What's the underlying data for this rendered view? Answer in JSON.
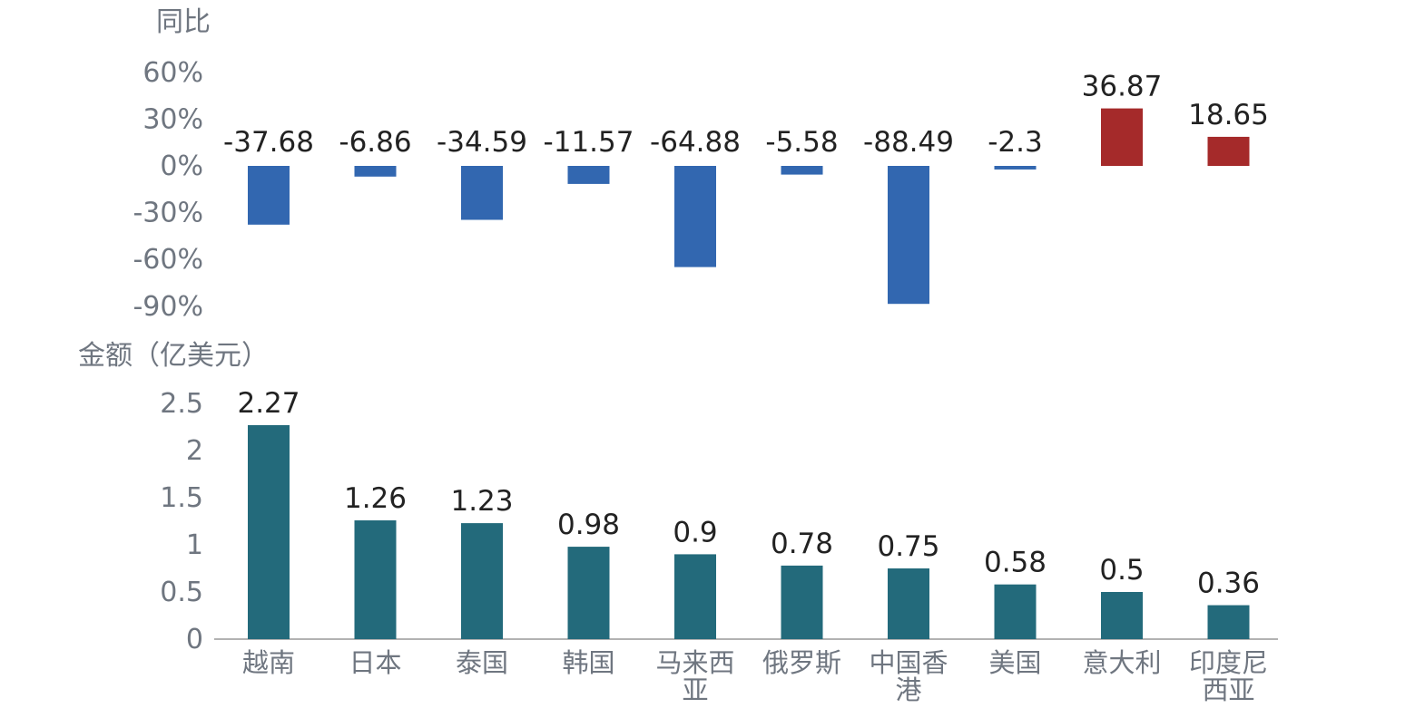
{
  "chart_data": [
    {
      "type": "bar",
      "panel": "top",
      "axis_unit": "同比",
      "categories": [
        "越南",
        "日本",
        "泰国",
        "韩国",
        "马来西亚",
        "俄罗斯",
        "中国香港",
        "美国",
        "意大利",
        "印度尼西亚"
      ],
      "values": [
        -37.68,
        -6.86,
        -34.59,
        -11.57,
        -64.88,
        -5.58,
        -88.49,
        -2.3,
        36.87,
        18.65
      ],
      "value_labels": [
        "-37.68",
        "-6.86",
        "-34.59",
        "-11.57",
        "-64.88",
        "-5.58",
        "-88.49",
        "-2.3",
        "36.87",
        "18.65"
      ],
      "yticks": [
        60,
        30,
        0,
        -30,
        -60,
        -90
      ],
      "ytick_labels": [
        "60%",
        "30%",
        "0%",
        "-30%",
        "-60%",
        "-90%"
      ],
      "ylim": [
        -90,
        60
      ],
      "colors": {
        "positive": "#a52a2a",
        "negative": "#3267b0"
      }
    },
    {
      "type": "bar",
      "panel": "bottom",
      "axis_unit": "金额（亿美元）",
      "categories": [
        "越南",
        "日本",
        "泰国",
        "韩国",
        "马来西亚",
        "俄罗斯",
        "中国香港",
        "美国",
        "意大利",
        "印度尼西亚"
      ],
      "category_lines": [
        [
          "越南"
        ],
        [
          "日本"
        ],
        [
          "泰国"
        ],
        [
          "韩国"
        ],
        [
          "马来西",
          "亚"
        ],
        [
          "俄罗斯"
        ],
        [
          "中国香",
          "港"
        ],
        [
          "美国"
        ],
        [
          "意大利"
        ],
        [
          "印度尼",
          "西亚"
        ]
      ],
      "values": [
        2.27,
        1.26,
        1.23,
        0.98,
        0.9,
        0.78,
        0.75,
        0.58,
        0.5,
        0.36
      ],
      "value_labels": [
        "2.27",
        "1.26",
        "1.23",
        "0.98",
        "0.9",
        "0.78",
        "0.75",
        "0.58",
        "0.5",
        "0.36"
      ],
      "yticks": [
        2.5,
        2,
        1.5,
        1,
        0.5,
        0
      ],
      "ytick_labels": [
        "2.5",
        "2",
        "1.5",
        "1",
        "0.5",
        "0"
      ],
      "ylim": [
        0,
        2.5
      ],
      "colors": {
        "bar": "#236a7b",
        "axis": "#999999"
      }
    }
  ]
}
